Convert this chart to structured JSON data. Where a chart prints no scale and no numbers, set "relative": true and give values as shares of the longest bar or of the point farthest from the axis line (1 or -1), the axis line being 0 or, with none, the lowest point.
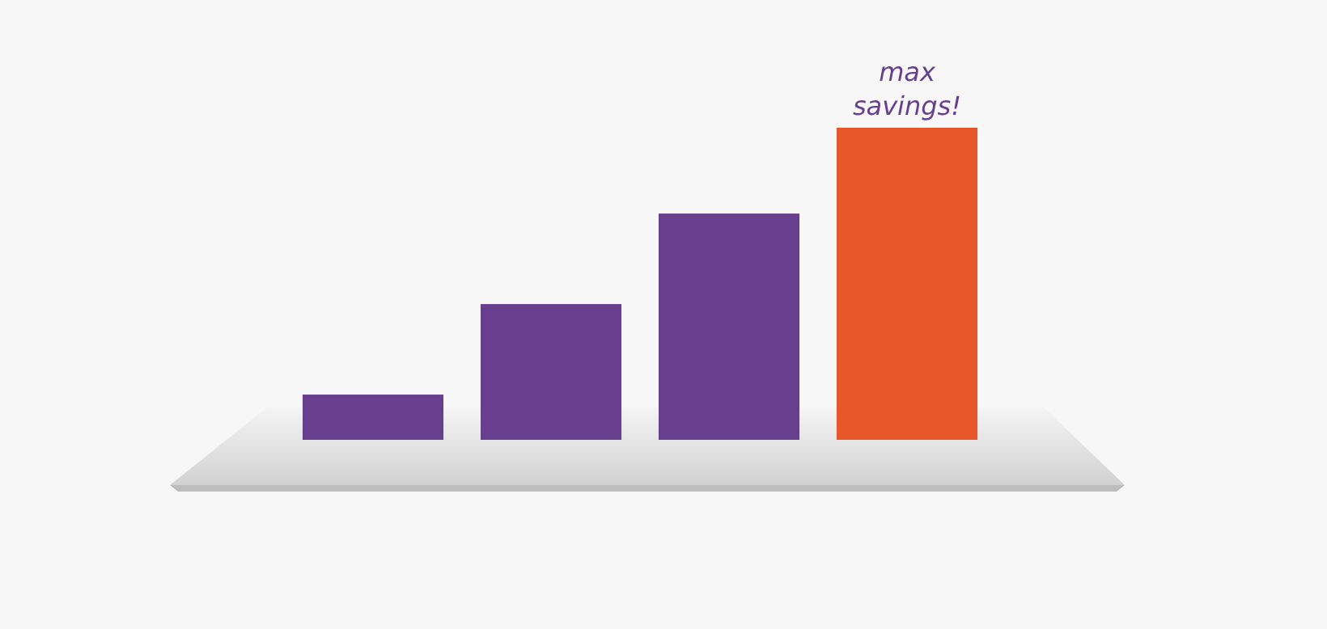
{
  "chart_data": {
    "type": "bar",
    "relative": true,
    "categories": [
      null,
      null,
      null,
      null
    ],
    "values": [
      0.145,
      0.435,
      0.725,
      1
    ],
    "colors": [
      "#673f8e",
      "#673f8e",
      "#673f8e",
      "#e8572a"
    ],
    "annotations": [
      "max savings!"
    ]
  }
}
